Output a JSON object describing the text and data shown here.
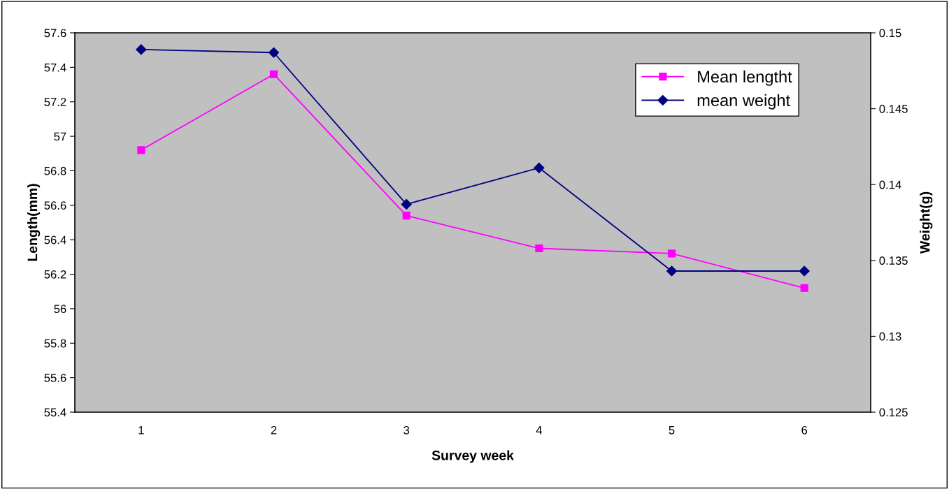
{
  "chart_data": {
    "type": "line",
    "xlabel": "Survey week",
    "ylabel": "Length(mm)",
    "y2label": "Weight(g)",
    "categories": [
      "1",
      "2",
      "3",
      "4",
      "5",
      "6"
    ],
    "series": [
      {
        "name": "Mean lengtht",
        "color": "#ff00ff",
        "marker": "square",
        "values": [
          56.92,
          57.36,
          56.54,
          56.35,
          56.32,
          56.12
        ]
      },
      {
        "name": "mean weight",
        "color": "#000080",
        "marker": "diamond",
        "axis": "y2",
        "values": [
          0.1489,
          0.1487,
          0.1387,
          0.1411,
          0.1343,
          0.1343
        ]
      }
    ],
    "ylim": [
      55.4,
      57.6
    ],
    "yticks": [
      55.4,
      55.6,
      55.8,
      56,
      56.2,
      56.4,
      56.6,
      56.8,
      57,
      57.2,
      57.4,
      57.6
    ],
    "y2lim": [
      0.125,
      0.15
    ],
    "y2ticks": [
      0.125,
      0.13,
      0.135,
      0.14,
      0.145,
      0.15
    ],
    "grid": false,
    "legend": "top right"
  }
}
